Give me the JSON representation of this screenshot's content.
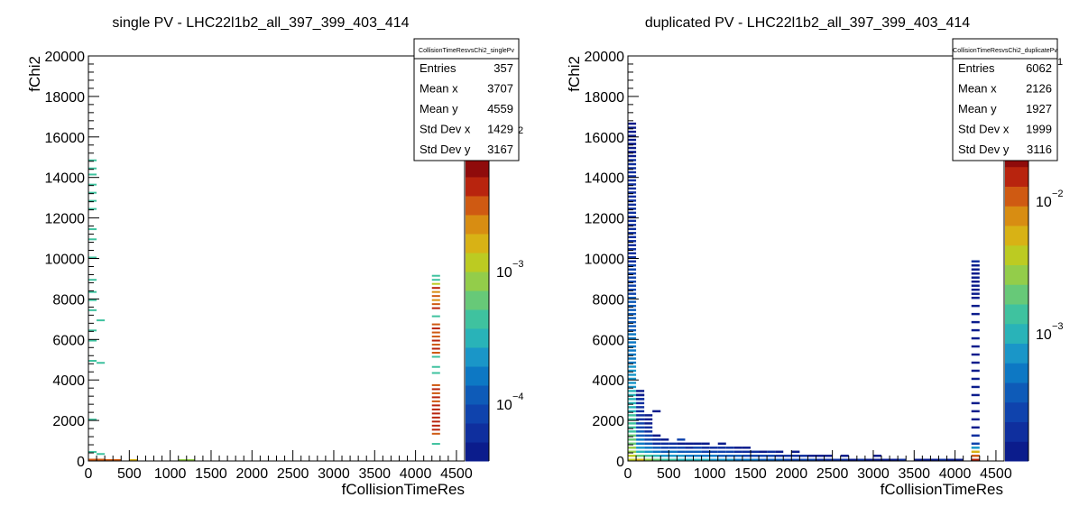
{
  "chart_data": [
    {
      "type": "heatmap",
      "title": "single PV - LHC22l1b2_all_397_399_403_414",
      "xlabel": "fCollisionTimeRes",
      "ylabel": "fChi2",
      "xlim": [
        0,
        4600
      ],
      "ylim": [
        0,
        20000
      ],
      "x_ticks": [
        "0",
        "500",
        "1000",
        "1500",
        "2000",
        "2500",
        "3000",
        "3500",
        "4000",
        "4500"
      ],
      "y_ticks": [
        "0",
        "2000",
        "4000",
        "6000",
        "8000",
        "10000",
        "12000",
        "14000",
        "16000",
        "18000",
        "20000"
      ],
      "palette_labels": [
        "10^-4",
        "10^-3",
        "10^-2"
      ],
      "palette_visible_labels": [
        "10",
        "−4",
        "10",
        "−3",
        "2"
      ],
      "stats": {
        "name": "CollisionTimeResvsChi2_singlePv",
        "rows": [
          {
            "label": "Entries",
            "value": "357"
          },
          {
            "label": "Mean x",
            "value": "3707"
          },
          {
            "label": "Mean y",
            "value": "4559"
          },
          {
            "label": "Std Dev x",
            "value": "1429"
          },
          {
            "label": "Std Dev y",
            "value": "3167"
          }
        ]
      },
      "cells": [
        {
          "x": [
            0,
            100
          ],
          "y": [
            0,
            200
          ],
          "level": 13
        },
        {
          "x": [
            100,
            200
          ],
          "y": [
            0,
            200
          ],
          "level": 13
        },
        {
          "x": [
            200,
            400
          ],
          "y": [
            0,
            100
          ],
          "level": 13
        },
        {
          "x": [
            500,
            600
          ],
          "y": [
            0,
            100
          ],
          "level": 11
        },
        {
          "x": [
            1100,
            1300
          ],
          "y": [
            0,
            100
          ],
          "level": 9
        },
        {
          "x": [
            0,
            100
          ],
          "y": [
            400,
            500
          ],
          "level": 7
        },
        {
          "x": [
            100,
            200
          ],
          "y": [
            300,
            400
          ],
          "level": 7
        },
        {
          "x": [
            0,
            100
          ],
          "y": [
            2000,
            2100
          ],
          "level": 7
        },
        {
          "x": [
            0,
            100
          ],
          "y": [
            4900,
            5000
          ],
          "level": 7
        },
        {
          "x": [
            100,
            200
          ],
          "y": [
            4800,
            4900
          ],
          "level": 7
        },
        {
          "x": [
            0,
            100
          ],
          "y": [
            5900,
            6000
          ],
          "level": 7
        },
        {
          "x": [
            0,
            100
          ],
          "y": [
            6400,
            6500
          ],
          "level": 7
        },
        {
          "x": [
            100,
            200
          ],
          "y": [
            6900,
            7000
          ],
          "level": 7
        },
        {
          "x": [
            0,
            100
          ],
          "y": [
            7400,
            7500
          ],
          "level": 7
        },
        {
          "x": [
            0,
            100
          ],
          "y": [
            7900,
            8000
          ],
          "level": 7
        },
        {
          "x": [
            0,
            100
          ],
          "y": [
            8300,
            8400
          ],
          "level": 7
        },
        {
          "x": [
            0,
            100
          ],
          "y": [
            8900,
            9000
          ],
          "level": 7
        },
        {
          "x": [
            0,
            100
          ],
          "y": [
            10000,
            10100
          ],
          "level": 7
        },
        {
          "x": [
            0,
            100
          ],
          "y": [
            10900,
            11000
          ],
          "level": 7
        },
        {
          "x": [
            0,
            100
          ],
          "y": [
            11400,
            11500
          ],
          "level": 7
        },
        {
          "x": [
            0,
            100
          ],
          "y": [
            12400,
            12500
          ],
          "level": 7
        },
        {
          "x": [
            0,
            100
          ],
          "y": [
            12800,
            12900
          ],
          "level": 7
        },
        {
          "x": [
            0,
            100
          ],
          "y": [
            13200,
            13300
          ],
          "level": 7
        },
        {
          "x": [
            0,
            100
          ],
          "y": [
            13600,
            13700
          ],
          "level": 7
        },
        {
          "x": [
            0,
            100
          ],
          "y": [
            14100,
            14200
          ],
          "level": 7
        },
        {
          "x": [
            0,
            100
          ],
          "y": [
            14400,
            14500
          ],
          "level": 7
        },
        {
          "x": [
            0,
            100
          ],
          "y": [
            14800,
            14900
          ],
          "level": 7
        },
        {
          "x": [
            4200,
            4300
          ],
          "y": [
            800,
            900
          ],
          "level": 7
        },
        {
          "x": [
            4200,
            4300
          ],
          "y": [
            1300,
            1400
          ],
          "level": 13
        },
        {
          "x": [
            4200,
            4300
          ],
          "y": [
            1500,
            1600
          ],
          "level": 14
        },
        {
          "x": [
            4200,
            4300
          ],
          "y": [
            1700,
            1800
          ],
          "level": 14
        },
        {
          "x": [
            4200,
            4300
          ],
          "y": [
            1900,
            2000
          ],
          "level": 14
        },
        {
          "x": [
            4200,
            4300
          ],
          "y": [
            2100,
            2200
          ],
          "level": 14
        },
        {
          "x": [
            4200,
            4300
          ],
          "y": [
            2300,
            2400
          ],
          "level": 14
        },
        {
          "x": [
            4200,
            4300
          ],
          "y": [
            2500,
            2600
          ],
          "level": 14
        },
        {
          "x": [
            4200,
            4300
          ],
          "y": [
            2700,
            2800
          ],
          "level": 14
        },
        {
          "x": [
            4200,
            4300
          ],
          "y": [
            2900,
            3000
          ],
          "level": 13
        },
        {
          "x": [
            4200,
            4300
          ],
          "y": [
            3100,
            3200
          ],
          "level": 14
        },
        {
          "x": [
            4200,
            4300
          ],
          "y": [
            3300,
            3400
          ],
          "level": 13
        },
        {
          "x": [
            4200,
            4300
          ],
          "y": [
            3500,
            3600
          ],
          "level": 14
        },
        {
          "x": [
            4200,
            4300
          ],
          "y": [
            3700,
            3800
          ],
          "level": 13
        },
        {
          "x": [
            4200,
            4300
          ],
          "y": [
            4300,
            4400
          ],
          "level": 7
        },
        {
          "x": [
            4200,
            4300
          ],
          "y": [
            4600,
            4700
          ],
          "level": 7
        },
        {
          "x": [
            4200,
            4300
          ],
          "y": [
            5100,
            5200
          ],
          "level": 7
        },
        {
          "x": [
            4200,
            4300
          ],
          "y": [
            5300,
            5400
          ],
          "level": 13
        },
        {
          "x": [
            4200,
            4300
          ],
          "y": [
            5500,
            5600
          ],
          "level": 14
        },
        {
          "x": [
            4200,
            4300
          ],
          "y": [
            5700,
            5800
          ],
          "level": 13
        },
        {
          "x": [
            4200,
            4300
          ],
          "y": [
            5900,
            6000
          ],
          "level": 14
        },
        {
          "x": [
            4200,
            4300
          ],
          "y": [
            6100,
            6200
          ],
          "level": 13
        },
        {
          "x": [
            4200,
            4300
          ],
          "y": [
            6300,
            6400
          ],
          "level": 13
        },
        {
          "x": [
            4200,
            4300
          ],
          "y": [
            6500,
            6600
          ],
          "level": 14
        },
        {
          "x": [
            4200,
            4300
          ],
          "y": [
            6700,
            6800
          ],
          "level": 13
        },
        {
          "x": [
            4200,
            4300
          ],
          "y": [
            7100,
            7200
          ],
          "level": 7
        },
        {
          "x": [
            4200,
            4300
          ],
          "y": [
            7500,
            7600
          ],
          "level": 14
        },
        {
          "x": [
            4200,
            4300
          ],
          "y": [
            7700,
            7800
          ],
          "level": 13
        },
        {
          "x": [
            4200,
            4300
          ],
          "y": [
            7900,
            8000
          ],
          "level": 12
        },
        {
          "x": [
            4200,
            4300
          ],
          "y": [
            8100,
            8200
          ],
          "level": 13
        },
        {
          "x": [
            4200,
            4300
          ],
          "y": [
            8300,
            8400
          ],
          "level": 12
        },
        {
          "x": [
            4200,
            4300
          ],
          "y": [
            8500,
            8600
          ],
          "level": 14
        },
        {
          "x": [
            4200,
            4300
          ],
          "y": [
            8700,
            8800
          ],
          "level": 10
        },
        {
          "x": [
            4200,
            4300
          ],
          "y": [
            8900,
            9000
          ],
          "level": 7
        },
        {
          "x": [
            4200,
            4300
          ],
          "y": [
            9100,
            9200
          ],
          "level": 7
        }
      ]
    },
    {
      "type": "heatmap",
      "title": "duplicated PV - LHC22l1b2_all_397_399_403_414",
      "xlabel": "fCollisionTimeRes",
      "ylabel": "fChi2",
      "xlim": [
        0,
        4600
      ],
      "ylim": [
        0,
        20000
      ],
      "x_ticks": [
        "0",
        "500",
        "1000",
        "1500",
        "2000",
        "2500",
        "3000",
        "3500",
        "4000",
        "4500"
      ],
      "y_ticks": [
        "0",
        "2000",
        "4000",
        "6000",
        "8000",
        "10000",
        "12000",
        "14000",
        "16000",
        "18000",
        "20000"
      ],
      "palette_labels": [
        "10^-3",
        "10^-2",
        "10^-1"
      ],
      "palette_visible_labels": [
        "10",
        "−3",
        "10",
        "−2",
        "1"
      ],
      "stats": {
        "name": "CollisionTimeResvsChi2_duplicatePv",
        "rows": [
          {
            "label": "Entries",
            "value": "6062"
          },
          {
            "label": "Mean x",
            "value": "2126"
          },
          {
            "label": "Mean y",
            "value": "1927"
          },
          {
            "label": "Std Dev x",
            "value": "1999"
          },
          {
            "label": "Std Dev y",
            "value": "3116"
          }
        ]
      },
      "cells": []
    }
  ],
  "palette_colors": [
    "#0b1c8c",
    "#0f2f9e",
    "#0f43ad",
    "#0e5bb8",
    "#0d78c4",
    "#1a96c8",
    "#29b3b8",
    "#3fc29f",
    "#67c978",
    "#93cd4a",
    "#bccb22",
    "#d8b215",
    "#d88d12",
    "#cf5a12",
    "#b8240e",
    "#8f0b0b"
  ]
}
